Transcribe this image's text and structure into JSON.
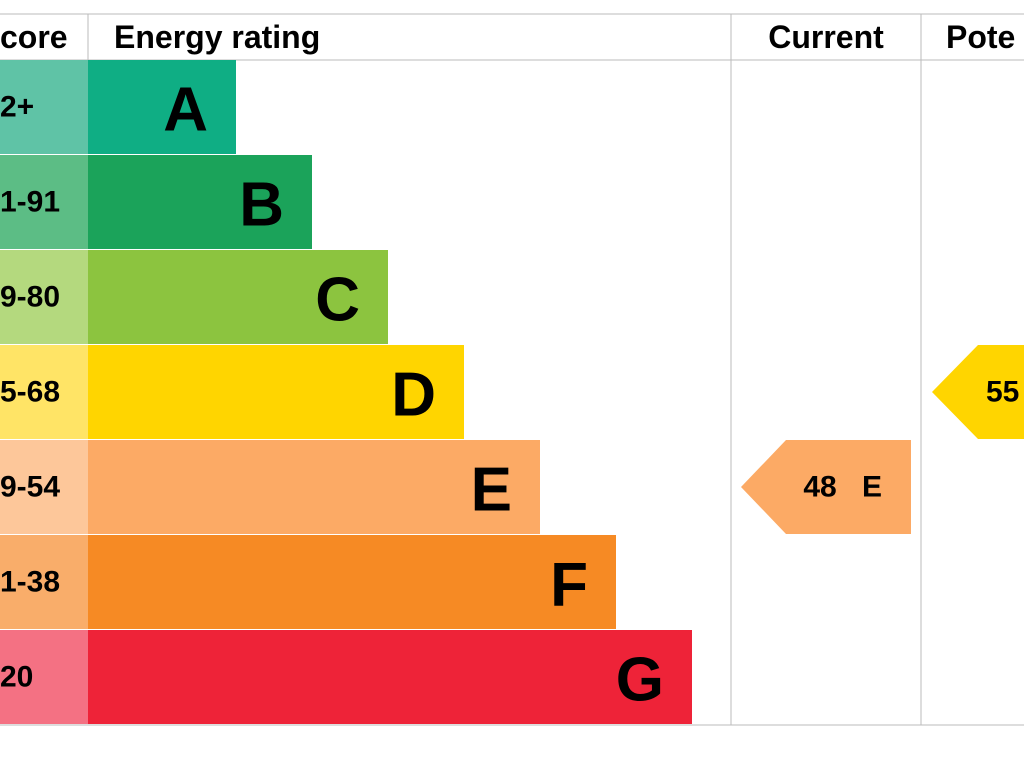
{
  "header": {
    "score": "core",
    "rating": "Energy rating",
    "current": "Current",
    "potential": "Pote"
  },
  "bands": [
    {
      "range": "2+",
      "letter": "A"
    },
    {
      "range": "1-91",
      "letter": "B"
    },
    {
      "range": "9-80",
      "letter": "C"
    },
    {
      "range": "5-68",
      "letter": "D"
    },
    {
      "range": "9-54",
      "letter": "E"
    },
    {
      "range": "1-38",
      "letter": "F"
    },
    {
      "range": "20",
      "letter": "G"
    }
  ],
  "current": {
    "value": "48",
    "letter": "E"
  },
  "potential": {
    "value": "55"
  }
}
